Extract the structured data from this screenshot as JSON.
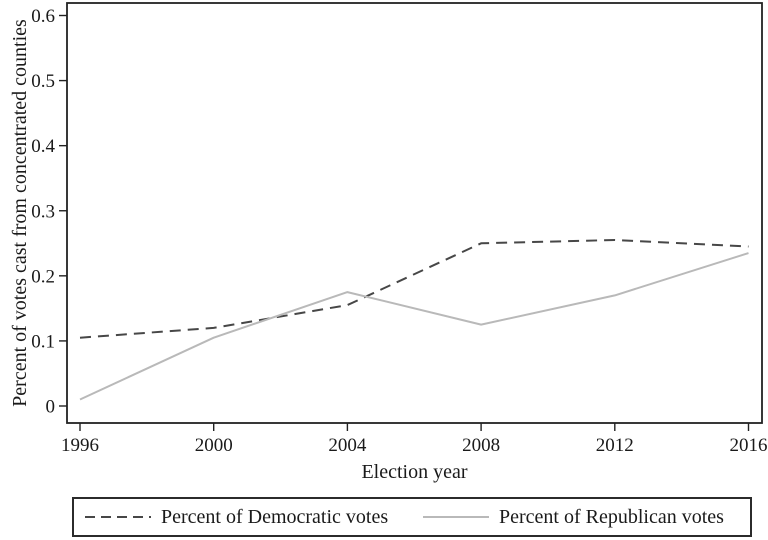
{
  "figure": {
    "background": "#ffffff",
    "text_color": "#1a1a1a",
    "axis_color": "#222222"
  },
  "chart_data": {
    "type": "line",
    "title": "",
    "xlabel": "Election year",
    "ylabel": "Percent of votes cast from concentrated counties",
    "x": [
      1996,
      2000,
      2004,
      2008,
      2012,
      2016
    ],
    "x_ticks": [
      "1996",
      "2000",
      "2004",
      "2008",
      "2012",
      "2016"
    ],
    "y_ticks": [
      "0",
      "0.1",
      "0.2",
      "0.3",
      "0.4",
      "0.5",
      "0.6"
    ],
    "xlim": [
      1996,
      2016
    ],
    "ylim": [
      0,
      0.6
    ],
    "grid": false,
    "legend_position": "bottom",
    "series": [
      {
        "name": "Percent of Democratic votes",
        "style": "dashed",
        "color": "#474747",
        "values": [
          0.105,
          0.12,
          0.155,
          0.25,
          0.255,
          0.245
        ]
      },
      {
        "name": "Percent of Republican votes",
        "style": "solid",
        "color": "#b9b9b9",
        "values": [
          0.01,
          0.105,
          0.175,
          0.125,
          0.17,
          0.235
        ]
      }
    ]
  }
}
